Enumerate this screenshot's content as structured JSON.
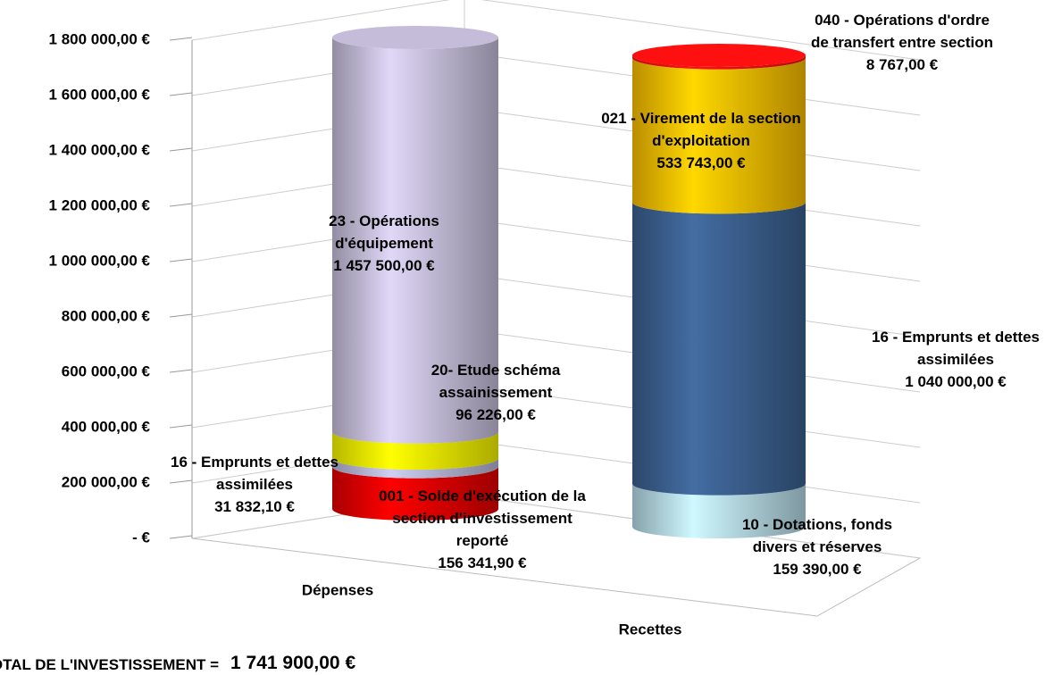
{
  "chart_data": {
    "type": "stacked-cylinder",
    "categories": [
      "Dépenses",
      "Recettes"
    ],
    "ylim": [
      0,
      1800000
    ],
    "yticks": [
      {
        "value": 0,
        "label": "-  €"
      },
      {
        "value": 200000,
        "label": "200 000,00 €"
      },
      {
        "value": 400000,
        "label": "400 000,00 €"
      },
      {
        "value": 600000,
        "label": "600 000,00 €"
      },
      {
        "value": 800000,
        "label": "800 000,00 €"
      },
      {
        "value": 1000000,
        "label": "1 000 000,00 €"
      },
      {
        "value": 1200000,
        "label": "1 200 000,00 €"
      },
      {
        "value": 1400000,
        "label": "1 400 000,00 €"
      },
      {
        "value": 1600000,
        "label": "1 600 000,00 €"
      },
      {
        "value": 1800000,
        "label": "1 800 000,00 €"
      }
    ],
    "grid": true,
    "series": [
      {
        "name": "001 - Solde d'exécution de la section d'investissement reporté",
        "color": "#e00000",
        "values": [
          156341.9,
          null
        ],
        "value_labels": [
          "156 341,90 €",
          null
        ]
      },
      {
        "name": "16 - Emprunts et dettes assimilées",
        "color": "#b4b4d4",
        "values": [
          31832.1,
          null
        ],
        "value_labels": [
          "31 832,10 €",
          null
        ]
      },
      {
        "name": "20- Etude schéma assainissement",
        "color": "#f4f400",
        "values": [
          96226,
          null
        ],
        "value_labels": [
          "96 226,00 €",
          null
        ]
      },
      {
        "name": "23 - Opérations d'équipement",
        "color": "#c4bcd8",
        "values": [
          1457500,
          null
        ],
        "value_labels": [
          "1 457 500,00 €",
          null
        ]
      },
      {
        "name": "10 - Dotations, fonds divers et réserves",
        "color": "#b4d8e4",
        "values": [
          null,
          159390
        ],
        "value_labels": [
          null,
          "159 390,00 €"
        ]
      },
      {
        "name": "16 - Emprunts et dettes assimilées",
        "color": "#3b5f8e",
        "values": [
          null,
          1040000
        ],
        "value_labels": [
          null,
          "1 040 000,00 €"
        ]
      },
      {
        "name": "021 - Virement de la section d'exploitation",
        "color": "#f8bc00",
        "values": [
          null,
          533743
        ],
        "value_labels": [
          null,
          "533 743,00 €"
        ]
      },
      {
        "name": "040 - Opérations d'ordre de transfert entre section",
        "color": "#ff1010",
        "values": [
          null,
          8767
        ],
        "value_labels": [
          null,
          "8 767,00 €"
        ]
      }
    ],
    "total_label": "TOTAL DE L'INVESTISSEMENT =",
    "total": "1 741 900,00 €"
  }
}
